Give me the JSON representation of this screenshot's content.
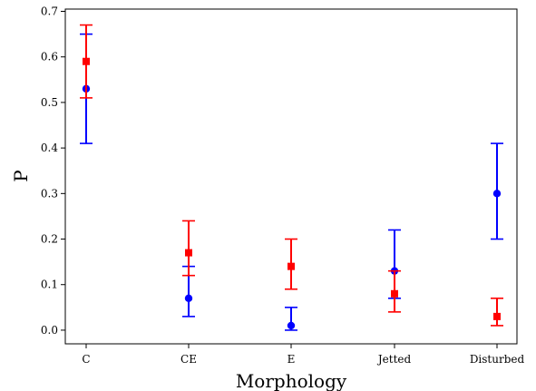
{
  "chart_data": {
    "type": "scatter",
    "xlabel": "Morphology",
    "ylabel": "P",
    "categories": [
      "C",
      "CE",
      "E",
      "Jetted",
      "Disturbed"
    ],
    "ylim": [
      -0.03,
      0.705
    ],
    "yticks": [
      "0.0",
      "0.1",
      "0.2",
      "0.3",
      "0.4",
      "0.5",
      "0.6",
      "0.7"
    ],
    "ytick_values": [
      0.0,
      0.1,
      0.2,
      0.3,
      0.4,
      0.5,
      0.6,
      0.7
    ],
    "grid": false,
    "series": [
      {
        "color": "#0000ff",
        "marker": "circle",
        "values": [
          0.53,
          0.07,
          0.01,
          0.13,
          0.3
        ],
        "err_low": [
          0.41,
          0.03,
          0.0,
          0.07,
          0.2
        ],
        "err_high": [
          0.65,
          0.14,
          0.05,
          0.22,
          0.41
        ]
      },
      {
        "color": "#ff0000",
        "marker": "square",
        "values": [
          0.59,
          0.17,
          0.14,
          0.08,
          0.03
        ],
        "err_low": [
          0.51,
          0.12,
          0.09,
          0.04,
          0.01
        ],
        "err_high": [
          0.67,
          0.24,
          0.2,
          0.13,
          0.07
        ]
      }
    ]
  }
}
